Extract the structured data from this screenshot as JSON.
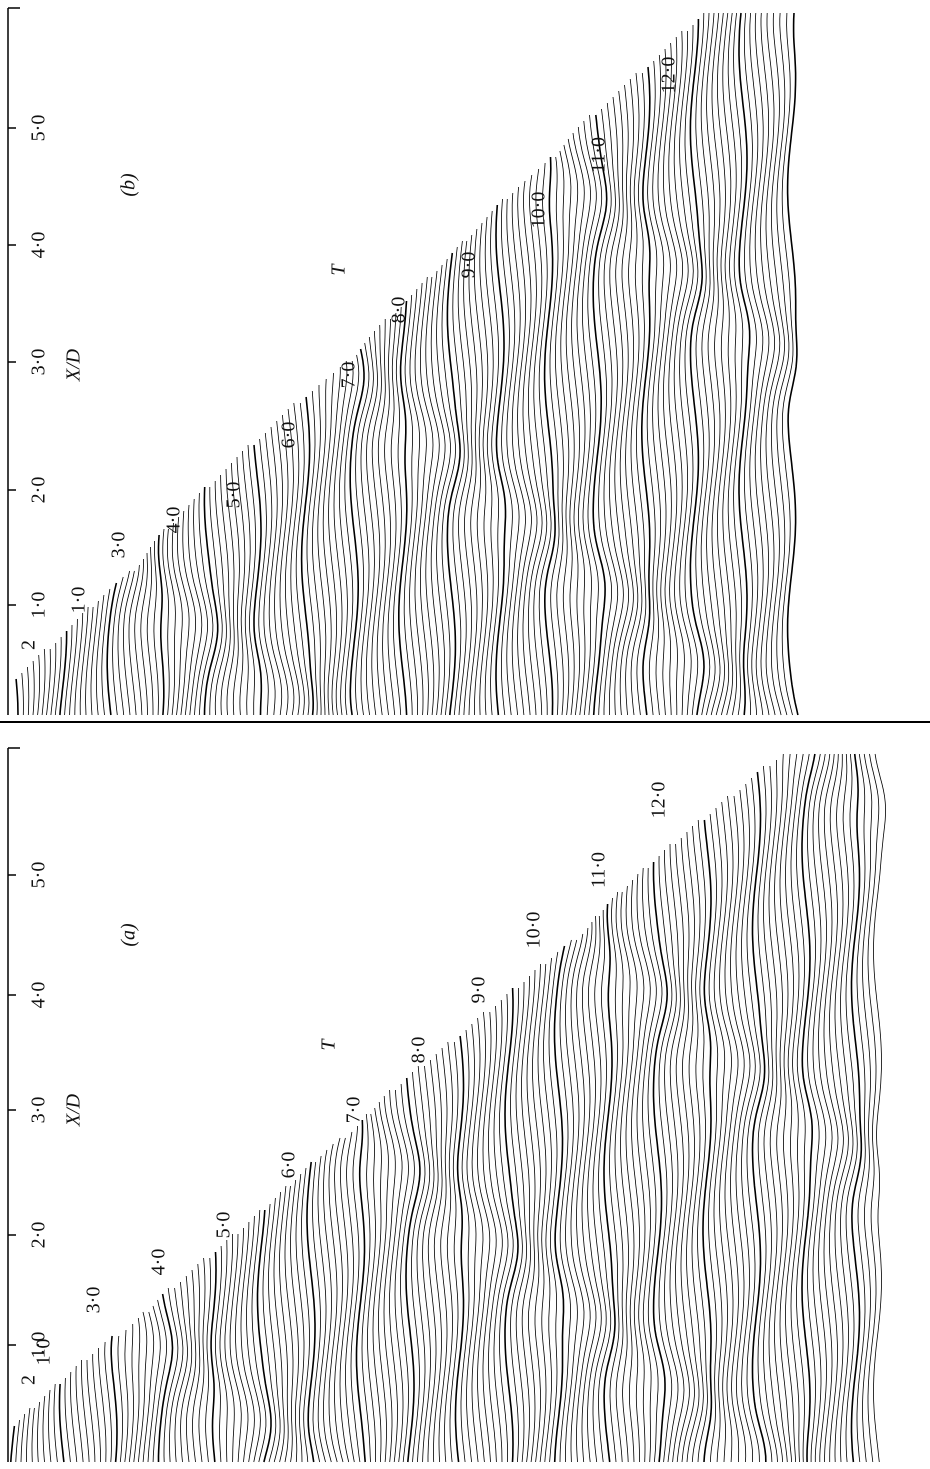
{
  "panels": [
    {
      "label": "(b)",
      "axis_label": "X/D",
      "variable": "T",
      "ticks": [
        "5·0",
        "4·0",
        "3·0",
        "2·0",
        "1·0"
      ],
      "time_labels": [
        "2",
        "1·0",
        "3·0",
        "4·0",
        "5·0",
        "6·0",
        "7·0",
        "8·0",
        "9·0",
        "10·0",
        "11·0",
        "12·0"
      ]
    },
    {
      "label": "(a)",
      "axis_label": "X/D",
      "variable": "T",
      "ticks": [
        "5·0",
        "4·0",
        "3·0",
        "2·0",
        "1·0"
      ],
      "time_labels": [
        "2",
        "1·0",
        "3·0",
        "4·0",
        "5·0",
        "6·0",
        "7·0",
        "8·0",
        "9·0",
        "10·0",
        "11·0",
        "12·0"
      ]
    }
  ]
}
